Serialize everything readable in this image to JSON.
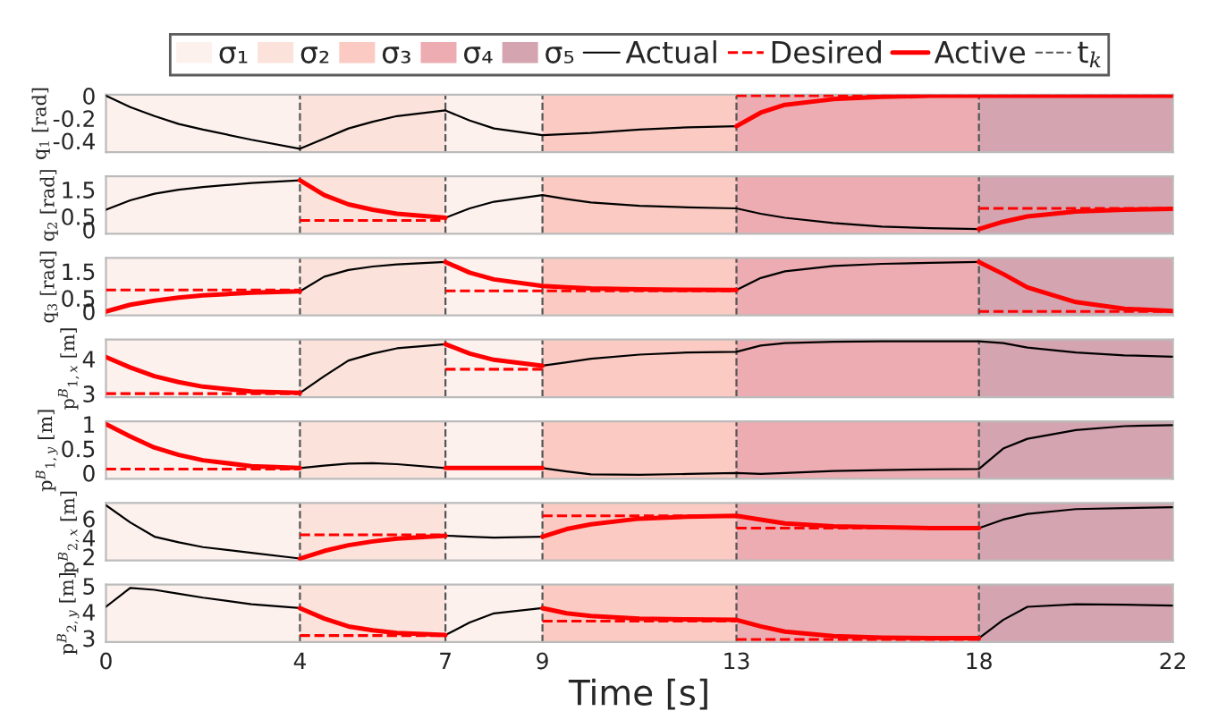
{
  "chart_data": [
    {
      "type": "line",
      "ylabel": "q$_{1}$ [rad]",
      "legend": "top",
      "tick_labels": "y",
      "x": [
        0,
        0.5,
        1,
        1.5,
        2,
        3,
        4,
        4.5,
        5,
        5.5,
        6,
        7,
        7.5,
        8,
        9,
        9.5,
        10,
        11,
        12,
        13,
        13.5,
        14,
        15,
        16,
        17,
        18,
        18.5,
        19,
        20,
        21,
        22
      ],
      "xlim": [
        0,
        22
      ],
      "xticks": [
        0,
        4,
        7,
        9,
        13,
        18,
        22
      ],
      "ylim": [
        -0.5,
        0.01
      ],
      "yticks": [
        -0.4,
        -0.2,
        0
      ],
      "series": [
        {
          "name": "Actual",
          "color": "#000000",
          "line_style": "solid",
          "values": [
            0,
            -0.1,
            -0.18,
            -0.25,
            -0.3,
            -0.39,
            -0.47,
            -0.38,
            -0.29,
            -0.23,
            -0.18,
            -0.13,
            -0.22,
            -0.29,
            -0.35,
            -0.34,
            -0.33,
            -0.3,
            -0.28,
            -0.27,
            null,
            null,
            null,
            null,
            null,
            null,
            null,
            null,
            null,
            null,
            null
          ]
        },
        {
          "name": "Desired",
          "color": "#ff0000",
          "line_style": "dashed",
          "x": [
            13,
            22
          ],
          "values": [
            0,
            0
          ]
        },
        {
          "name": "Active",
          "color": "#ff0000",
          "line_style": "solid",
          "values": [
            null,
            null,
            null,
            null,
            null,
            null,
            null,
            null,
            null,
            null,
            null,
            null,
            null,
            null,
            null,
            null,
            null,
            null,
            null,
            -0.27,
            -0.15,
            -0.08,
            -0.03,
            -0.01,
            0,
            0,
            0,
            0,
            0,
            0,
            0
          ]
        }
      ],
      "bands": [
        {
          "axis": "x",
          "from": 0,
          "to": 4,
          "color": "#fdf1ee",
          "label": "σ₁"
        },
        {
          "axis": "x",
          "from": 4,
          "to": 7,
          "color": "#fbe2da",
          "label": "σ₂"
        },
        {
          "axis": "x",
          "from": 7,
          "to": 9,
          "color": "#fdf1ee"
        },
        {
          "axis": "x",
          "from": 9,
          "to": 13,
          "color": "#fbcbc3",
          "label": "σ₃"
        },
        {
          "axis": "x",
          "from": 13,
          "to": 18,
          "color": "#ecacb1",
          "label": "σ₄"
        },
        {
          "axis": "x",
          "from": 18,
          "to": 22,
          "color": "#d4a4b0",
          "label": "σ₅"
        }
      ],
      "ref_lines": [
        {
          "axis": "x",
          "value": 4,
          "color": "#555555",
          "line_style": "dashed",
          "label": "t$_{k}$"
        },
        {
          "axis": "x",
          "value": 7,
          "color": "#555555",
          "line_style": "dashed"
        },
        {
          "axis": "x",
          "value": 9,
          "color": "#555555",
          "line_style": "dashed"
        },
        {
          "axis": "x",
          "value": 13,
          "color": "#555555",
          "line_style": "dashed"
        },
        {
          "axis": "x",
          "value": 18,
          "color": "#555555",
          "line_style": "dashed"
        }
      ]
    },
    {
      "type": "line",
      "ylabel": "q$_{2}$ [rad]",
      "tick_labels": "y",
      "x": [
        0,
        0.5,
        1,
        1.5,
        2,
        3,
        4,
        4.5,
        5,
        5.5,
        6,
        7,
        7.5,
        8,
        9,
        9.5,
        10,
        11,
        12,
        13,
        13.5,
        14,
        15,
        16,
        17,
        18,
        18.5,
        19,
        20,
        21,
        22
      ],
      "xlim": [
        0,
        22
      ],
      "xticks": [
        0,
        4,
        7,
        9,
        13,
        18,
        22
      ],
      "ylim": [
        -0.15,
        2
      ],
      "yticks": [
        0,
        0.5,
        1.5
      ],
      "series": [
        {
          "color": "#000000",
          "line_style": "solid",
          "values": [
            0.75,
            1.1,
            1.35,
            1.5,
            1.6,
            1.75,
            1.85,
            null,
            null,
            null,
            null,
            0.45,
            0.8,
            1.05,
            1.3,
            1.15,
            1.02,
            0.9,
            0.84,
            0.8,
            0.6,
            0.45,
            0.25,
            0.12,
            0.06,
            0.03,
            null,
            null,
            null,
            null,
            null
          ]
        },
        {
          "color": "#ff0000",
          "line_style": "dashed",
          "x": [
            4,
            7
          ],
          "values": [
            0.35,
            0.35
          ]
        },
        {
          "color": "#ff0000",
          "line_style": "dashed",
          "x": [
            18,
            22
          ],
          "values": [
            0.8,
            0.8
          ]
        },
        {
          "color": "#ff0000",
          "line_style": "solid",
          "values": [
            null,
            null,
            null,
            null,
            null,
            null,
            1.85,
            1.3,
            0.95,
            0.75,
            0.6,
            0.45,
            null,
            null,
            null,
            null,
            null,
            null,
            null,
            null,
            null,
            null,
            null,
            null,
            null,
            0.03,
            0.3,
            0.5,
            0.68,
            0.75,
            0.78
          ]
        }
      ],
      "bands": [
        {
          "axis": "x",
          "from": 0,
          "to": 4,
          "color": "#fdf1ee"
        },
        {
          "axis": "x",
          "from": 4,
          "to": 7,
          "color": "#fbe2da"
        },
        {
          "axis": "x",
          "from": 7,
          "to": 9,
          "color": "#fdf1ee"
        },
        {
          "axis": "x",
          "from": 9,
          "to": 13,
          "color": "#fbcbc3"
        },
        {
          "axis": "x",
          "from": 13,
          "to": 18,
          "color": "#ecacb1"
        },
        {
          "axis": "x",
          "from": 18,
          "to": 22,
          "color": "#d4a4b0"
        }
      ],
      "ref_lines": [
        {
          "axis": "x",
          "value": 4,
          "color": "#555555",
          "line_style": "dashed"
        },
        {
          "axis": "x",
          "value": 7,
          "color": "#555555",
          "line_style": "dashed"
        },
        {
          "axis": "x",
          "value": 9,
          "color": "#555555",
          "line_style": "dashed"
        },
        {
          "axis": "x",
          "value": 13,
          "color": "#555555",
          "line_style": "dashed"
        },
        {
          "axis": "x",
          "value": 18,
          "color": "#555555",
          "line_style": "dashed"
        }
      ]
    },
    {
      "type": "line",
      "ylabel": "q$_{3}$ [rad]",
      "tick_labels": "y",
      "x": [
        0,
        0.5,
        1,
        1.5,
        2,
        3,
        4,
        4.5,
        5,
        5.5,
        6,
        7,
        7.5,
        8,
        9,
        9.5,
        10,
        11,
        12,
        13,
        13.5,
        14,
        15,
        16,
        17,
        18,
        18.5,
        19,
        20,
        21,
        22
      ],
      "xlim": [
        0,
        22
      ],
      "xticks": [
        0,
        4,
        7,
        9,
        13,
        18,
        22
      ],
      "ylim": [
        -0.15,
        2
      ],
      "yticks": [
        0,
        0.5,
        1.5
      ],
      "series": [
        {
          "color": "#000000",
          "line_style": "solid",
          "values": [
            null,
            null,
            null,
            null,
            null,
            null,
            0.75,
            1.3,
            1.55,
            1.68,
            1.76,
            1.85,
            null,
            null,
            null,
            null,
            null,
            null,
            null,
            0.8,
            1.25,
            1.5,
            1.7,
            1.78,
            1.82,
            1.85,
            null,
            null,
            null,
            null,
            null
          ]
        },
        {
          "color": "#ff0000",
          "line_style": "dashed",
          "x": [
            0,
            4
          ],
          "values": [
            0.8,
            0.8
          ]
        },
        {
          "color": "#ff0000",
          "line_style": "dashed",
          "x": [
            7,
            13
          ],
          "values": [
            0.77,
            0.77
          ]
        },
        {
          "color": "#ff0000",
          "line_style": "dashed",
          "x": [
            18,
            22
          ],
          "values": [
            0,
            0
          ]
        },
        {
          "color": "#ff0000",
          "line_style": "solid",
          "values": [
            0,
            0.25,
            0.4,
            0.52,
            0.6,
            0.7,
            0.75,
            null,
            null,
            null,
            null,
            1.85,
            1.45,
            1.2,
            0.95,
            0.9,
            0.86,
            0.83,
            0.81,
            0.8,
            null,
            null,
            null,
            null,
            null,
            1.85,
            1.4,
            0.9,
            0.35,
            0.1,
            0.02
          ]
        }
      ],
      "bands": [
        {
          "axis": "x",
          "from": 0,
          "to": 4,
          "color": "#fdf1ee"
        },
        {
          "axis": "x",
          "from": 4,
          "to": 7,
          "color": "#fbe2da"
        },
        {
          "axis": "x",
          "from": 7,
          "to": 9,
          "color": "#fdf1ee"
        },
        {
          "axis": "x",
          "from": 9,
          "to": 13,
          "color": "#fbcbc3"
        },
        {
          "axis": "x",
          "from": 13,
          "to": 18,
          "color": "#ecacb1"
        },
        {
          "axis": "x",
          "from": 18,
          "to": 22,
          "color": "#d4a4b0"
        }
      ],
      "ref_lines": [
        {
          "axis": "x",
          "value": 4,
          "color": "#555555",
          "line_style": "dashed"
        },
        {
          "axis": "x",
          "value": 7,
          "color": "#555555",
          "line_style": "dashed"
        },
        {
          "axis": "x",
          "value": 9,
          "color": "#555555",
          "line_style": "dashed"
        },
        {
          "axis": "x",
          "value": 13,
          "color": "#555555",
          "line_style": "dashed"
        },
        {
          "axis": "x",
          "value": 18,
          "color": "#555555",
          "line_style": "dashed"
        }
      ]
    },
    {
      "type": "line",
      "ylabel": "p$^{B}$$_{1,x}$ [m]",
      "tick_labels": "y",
      "x": [
        0,
        0.5,
        1,
        1.5,
        2,
        3,
        4,
        4.5,
        5,
        5.5,
        6,
        7,
        7.5,
        8,
        9,
        9.5,
        10,
        11,
        12,
        13,
        13.5,
        14,
        15,
        16,
        17,
        18,
        18.5,
        19,
        20,
        21,
        22
      ],
      "xlim": [
        0,
        22
      ],
      "xticks": [
        0,
        4,
        7,
        9,
        13,
        18,
        22
      ],
      "ylim": [
        2.9,
        4.55
      ],
      "yticks": [
        3,
        4
      ],
      "series": [
        {
          "color": "#000000",
          "line_style": "solid",
          "values": [
            null,
            null,
            null,
            null,
            null,
            null,
            3.02,
            3.5,
            3.95,
            4.15,
            4.3,
            4.42,
            null,
            null,
            3.8,
            3.9,
            4.0,
            4.12,
            4.18,
            4.2,
            4.38,
            4.45,
            4.49,
            4.5,
            4.5,
            4.5,
            4.45,
            4.32,
            4.18,
            4.1,
            4.06
          ]
        },
        {
          "color": "#ff0000",
          "line_style": "dashed",
          "x": [
            0,
            4
          ],
          "values": [
            3.0,
            3.0
          ]
        },
        {
          "color": "#ff0000",
          "line_style": "dashed",
          "x": [
            7,
            9
          ],
          "values": [
            3.7,
            3.7
          ]
        },
        {
          "color": "#ff0000",
          "line_style": "solid",
          "values": [
            4.05,
            3.75,
            3.5,
            3.33,
            3.2,
            3.06,
            3.02,
            null,
            null,
            null,
            null,
            4.42,
            4.15,
            3.97,
            3.8,
            null,
            null,
            null,
            null,
            null,
            null,
            null,
            null,
            null,
            null,
            null,
            null,
            null,
            null,
            null,
            null
          ]
        }
      ],
      "bands": [
        {
          "axis": "x",
          "from": 0,
          "to": 4,
          "color": "#fdf1ee"
        },
        {
          "axis": "x",
          "from": 4,
          "to": 7,
          "color": "#fbe2da"
        },
        {
          "axis": "x",
          "from": 7,
          "to": 9,
          "color": "#fdf1ee"
        },
        {
          "axis": "x",
          "from": 9,
          "to": 13,
          "color": "#fbcbc3"
        },
        {
          "axis": "x",
          "from": 13,
          "to": 18,
          "color": "#ecacb1"
        },
        {
          "axis": "x",
          "from": 18,
          "to": 22,
          "color": "#d4a4b0"
        }
      ],
      "ref_lines": [
        {
          "axis": "x",
          "value": 4,
          "color": "#555555",
          "line_style": "dashed"
        },
        {
          "axis": "x",
          "value": 7,
          "color": "#555555",
          "line_style": "dashed"
        },
        {
          "axis": "x",
          "value": 9,
          "color": "#555555",
          "line_style": "dashed"
        },
        {
          "axis": "x",
          "value": 13,
          "color": "#555555",
          "line_style": "dashed"
        },
        {
          "axis": "x",
          "value": 18,
          "color": "#555555",
          "line_style": "dashed"
        }
      ]
    },
    {
      "type": "line",
      "ylabel": "p$^{B}$$_{1,y}$ [m]",
      "tick_labels": "y",
      "x": [
        0,
        0.5,
        1,
        1.5,
        2,
        3,
        4,
        4.5,
        5,
        5.5,
        6,
        7,
        7.5,
        8,
        9,
        9.5,
        10,
        11,
        12,
        13,
        13.5,
        14,
        15,
        16,
        17,
        18,
        18.5,
        19,
        20,
        21,
        22
      ],
      "xlim": [
        0,
        22
      ],
      "xticks": [
        0,
        4,
        7,
        9,
        13,
        18,
        22
      ],
      "ylim": [
        -0.12,
        1.06
      ],
      "yticks": [
        0,
        0.5,
        1
      ],
      "series": [
        {
          "color": "#000000",
          "line_style": "solid",
          "values": [
            null,
            null,
            null,
            null,
            null,
            null,
            0.1,
            0.15,
            0.19,
            0.2,
            0.18,
            0.1,
            null,
            null,
            0.1,
            0.03,
            -0.03,
            -0.04,
            -0.02,
            0,
            -0.02,
            0,
            0.04,
            0.06,
            0.07,
            0.08,
            0.5,
            0.7,
            0.88,
            0.96,
            0.98
          ]
        },
        {
          "color": "#ff0000",
          "line_style": "dashed",
          "x": [
            0,
            4
          ],
          "values": [
            0.08,
            0.08
          ]
        },
        {
          "color": "#ff0000",
          "line_style": "solid",
          "values": [
            1.0,
            0.75,
            0.52,
            0.37,
            0.26,
            0.14,
            0.1,
            null,
            null,
            null,
            null,
            0.1,
            0.1,
            0.1,
            0.1,
            null,
            null,
            null,
            null,
            null,
            null,
            null,
            null,
            null,
            null,
            null,
            null,
            null,
            null,
            null,
            null
          ]
        }
      ],
      "bands": [
        {
          "axis": "x",
          "from": 0,
          "to": 4,
          "color": "#fdf1ee"
        },
        {
          "axis": "x",
          "from": 4,
          "to": 7,
          "color": "#fbe2da"
        },
        {
          "axis": "x",
          "from": 7,
          "to": 9,
          "color": "#fdf1ee"
        },
        {
          "axis": "x",
          "from": 9,
          "to": 13,
          "color": "#fbcbc3"
        },
        {
          "axis": "x",
          "from": 13,
          "to": 18,
          "color": "#ecacb1"
        },
        {
          "axis": "x",
          "from": 18,
          "to": 22,
          "color": "#d4a4b0"
        }
      ],
      "ref_lines": [
        {
          "axis": "x",
          "value": 4,
          "color": "#555555",
          "line_style": "dashed"
        },
        {
          "axis": "x",
          "value": 7,
          "color": "#555555",
          "line_style": "dashed"
        },
        {
          "axis": "x",
          "value": 9,
          "color": "#555555",
          "line_style": "dashed"
        },
        {
          "axis": "x",
          "value": 13,
          "color": "#555555",
          "line_style": "dashed"
        },
        {
          "axis": "x",
          "value": 18,
          "color": "#555555",
          "line_style": "dashed"
        }
      ]
    },
    {
      "type": "line",
      "ylabel": "p$^{B}$$_{2,x}$ [m]",
      "tick_labels": "y",
      "x": [
        0,
        0.5,
        1,
        1.5,
        2,
        3,
        4,
        4.5,
        5,
        5.5,
        6,
        7,
        7.5,
        8,
        9,
        9.5,
        10,
        11,
        12,
        13,
        13.5,
        14,
        15,
        16,
        17,
        18,
        18.5,
        19,
        20,
        21,
        22
      ],
      "xlim": [
        0,
        22
      ],
      "xticks": [
        0,
        4,
        7,
        9,
        13,
        18,
        22
      ],
      "ylim": [
        1.6,
        7.65
      ],
      "yticks": [
        2,
        4,
        6
      ],
      "series": [
        {
          "color": "#000000",
          "line_style": "solid",
          "values": [
            7.4,
            5.6,
            4.1,
            3.5,
            3.0,
            2.4,
            1.8,
            null,
            null,
            null,
            null,
            4.2,
            4.1,
            4.0,
            4.1,
            null,
            null,
            null,
            null,
            null,
            null,
            null,
            null,
            null,
            null,
            5.0,
            5.9,
            6.5,
            7.0,
            7.1,
            7.2
          ]
        },
        {
          "color": "#ff0000",
          "line_style": "dashed",
          "x": [
            4,
            7
          ],
          "values": [
            4.3,
            4.3
          ]
        },
        {
          "color": "#ff0000",
          "line_style": "dashed",
          "x": [
            9,
            13
          ],
          "values": [
            6.3,
            6.3
          ]
        },
        {
          "color": "#ff0000",
          "line_style": "dashed",
          "x": [
            13,
            18
          ],
          "values": [
            5.0,
            5.0
          ]
        },
        {
          "color": "#ff0000",
          "line_style": "solid",
          "values": [
            null,
            null,
            null,
            null,
            null,
            null,
            1.8,
            2.6,
            3.2,
            3.6,
            3.9,
            4.2,
            null,
            null,
            4.1,
            4.9,
            5.4,
            6.0,
            6.2,
            6.3,
            5.9,
            5.5,
            5.2,
            5.1,
            5.0,
            5.0,
            null,
            null,
            null,
            null,
            null
          ]
        }
      ],
      "bands": [
        {
          "axis": "x",
          "from": 0,
          "to": 4,
          "color": "#fdf1ee"
        },
        {
          "axis": "x",
          "from": 4,
          "to": 7,
          "color": "#fbe2da"
        },
        {
          "axis": "x",
          "from": 7,
          "to": 9,
          "color": "#fdf1ee"
        },
        {
          "axis": "x",
          "from": 9,
          "to": 13,
          "color": "#fbcbc3"
        },
        {
          "axis": "x",
          "from": 13,
          "to": 18,
          "color": "#ecacb1"
        },
        {
          "axis": "x",
          "from": 18,
          "to": 22,
          "color": "#d4a4b0"
        }
      ],
      "ref_lines": [
        {
          "axis": "x",
          "value": 4,
          "color": "#555555",
          "line_style": "dashed"
        },
        {
          "axis": "x",
          "value": 7,
          "color": "#555555",
          "line_style": "dashed"
        },
        {
          "axis": "x",
          "value": 9,
          "color": "#555555",
          "line_style": "dashed"
        },
        {
          "axis": "x",
          "value": 13,
          "color": "#555555",
          "line_style": "dashed"
        },
        {
          "axis": "x",
          "value": 18,
          "color": "#555555",
          "line_style": "dashed"
        }
      ]
    },
    {
      "type": "line",
      "ylabel": "p$^{B}$$_{2,y}$ [m]",
      "xlabel": "Time [s]",
      "x": [
        0,
        0.5,
        1,
        1.5,
        2,
        3,
        4,
        4.5,
        5,
        5.5,
        6,
        7,
        7.5,
        8,
        9,
        9.5,
        10,
        11,
        12,
        13,
        13.5,
        14,
        15,
        16,
        17,
        18,
        18.5,
        19,
        20,
        21,
        22
      ],
      "xlim": [
        0,
        22
      ],
      "xticks": [
        0,
        4,
        7,
        9,
        13,
        18,
        22
      ],
      "ylim": [
        2.85,
        5.05
      ],
      "yticks": [
        3,
        4,
        5
      ],
      "series": [
        {
          "color": "#000000",
          "line_style": "solid",
          "values": [
            4.2,
            4.92,
            4.85,
            4.7,
            4.55,
            4.3,
            4.15,
            null,
            null,
            null,
            null,
            3.12,
            3.6,
            3.95,
            4.15,
            null,
            null,
            null,
            null,
            null,
            null,
            null,
            null,
            null,
            null,
            3.0,
            3.7,
            4.2,
            4.3,
            4.28,
            4.25
          ]
        },
        {
          "color": "#ff0000",
          "line_style": "dashed",
          "x": [
            4,
            7
          ],
          "values": [
            3.1,
            3.1
          ]
        },
        {
          "color": "#ff0000",
          "line_style": "dashed",
          "x": [
            9,
            13
          ],
          "values": [
            3.65,
            3.65
          ]
        },
        {
          "color": "#ff0000",
          "line_style": "dashed",
          "x": [
            13,
            18
          ],
          "values": [
            2.95,
            2.95
          ]
        },
        {
          "color": "#ff0000",
          "line_style": "solid",
          "values": [
            null,
            null,
            null,
            null,
            null,
            null,
            4.15,
            3.75,
            3.45,
            3.3,
            3.2,
            3.12,
            null,
            null,
            4.15,
            3.95,
            3.85,
            3.75,
            3.72,
            3.7,
            3.45,
            3.25,
            3.08,
            3.02,
            3.0,
            3.0,
            null,
            null,
            null,
            null,
            null
          ]
        }
      ],
      "bands": [
        {
          "axis": "x",
          "from": 0,
          "to": 4,
          "color": "#fdf1ee"
        },
        {
          "axis": "x",
          "from": 4,
          "to": 7,
          "color": "#fbe2da"
        },
        {
          "axis": "x",
          "from": 7,
          "to": 9,
          "color": "#fdf1ee"
        },
        {
          "axis": "x",
          "from": 9,
          "to": 13,
          "color": "#fbcbc3"
        },
        {
          "axis": "x",
          "from": 13,
          "to": 18,
          "color": "#ecacb1"
        },
        {
          "axis": "x",
          "from": 18,
          "to": 22,
          "color": "#d4a4b0"
        }
      ],
      "ref_lines": [
        {
          "axis": "x",
          "value": 4,
          "color": "#555555",
          "line_style": "dashed"
        },
        {
          "axis": "x",
          "value": 7,
          "color": "#555555",
          "line_style": "dashed"
        },
        {
          "axis": "x",
          "value": 9,
          "color": "#555555",
          "line_style": "dashed"
        },
        {
          "axis": "x",
          "value": 13,
          "color": "#555555",
          "line_style": "dashed"
        },
        {
          "axis": "x",
          "value": 18,
          "color": "#555555",
          "line_style": "dashed"
        }
      ]
    }
  ]
}
